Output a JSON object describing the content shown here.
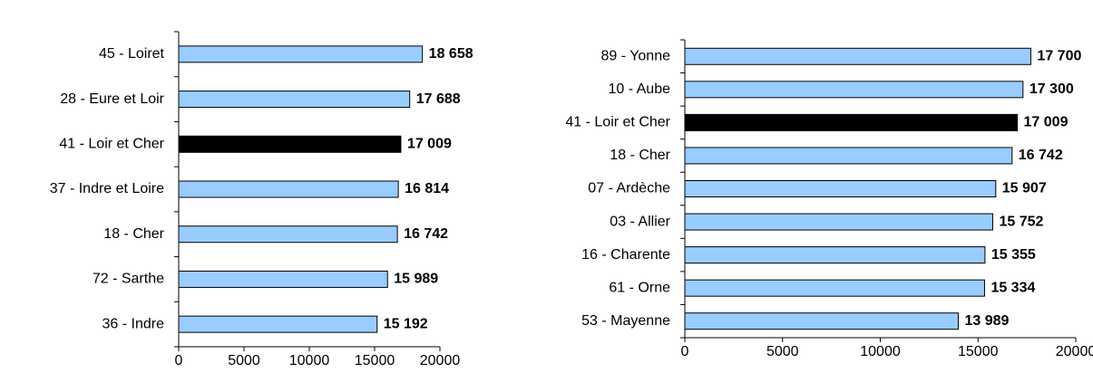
{
  "chart_data": [
    {
      "type": "bar",
      "orientation": "horizontal",
      "categories": [
        "45 - Loiret",
        "28 - Eure et Loir",
        "41 - Loir et Cher",
        "37 - Indre et Loire",
        "18 - Cher",
        "72 - Sarthe",
        "36 - Indre"
      ],
      "values": [
        18658,
        17688,
        17009,
        16814,
        16742,
        15989,
        15192
      ],
      "value_labels": [
        "18 658",
        "17 688",
        "17 009",
        "16 814",
        "16 742",
        "15 989",
        "15 192"
      ],
      "colors": [
        "#99ccff",
        "#99ccff",
        "#000000",
        "#99ccff",
        "#99ccff",
        "#99ccff",
        "#99ccff"
      ],
      "xlim": [
        0,
        20000
      ],
      "xticks": [
        0,
        5000,
        10000,
        15000,
        20000
      ]
    },
    {
      "type": "bar",
      "orientation": "horizontal",
      "categories": [
        "89 - Yonne",
        "10 - Aube",
        "41 - Loir et Cher",
        "18 - Cher",
        "07 - Ardèche",
        "03 - Allier",
        "16 - Charente",
        "61 - Orne",
        "53 - Mayenne"
      ],
      "values": [
        17700,
        17300,
        17009,
        16742,
        15907,
        15752,
        15355,
        15334,
        13989
      ],
      "value_labels": [
        "17 700",
        "17 300",
        "17 009",
        "16 742",
        "15 907",
        "15 752",
        "15 355",
        "15 334",
        "13 989"
      ],
      "colors": [
        "#99ccff",
        "#99ccff",
        "#000000",
        "#99ccff",
        "#99ccff",
        "#99ccff",
        "#99ccff",
        "#99ccff",
        "#99ccff"
      ],
      "xlim": [
        0,
        20000
      ],
      "xticks": [
        0,
        5000,
        10000,
        15000,
        20000
      ]
    }
  ]
}
